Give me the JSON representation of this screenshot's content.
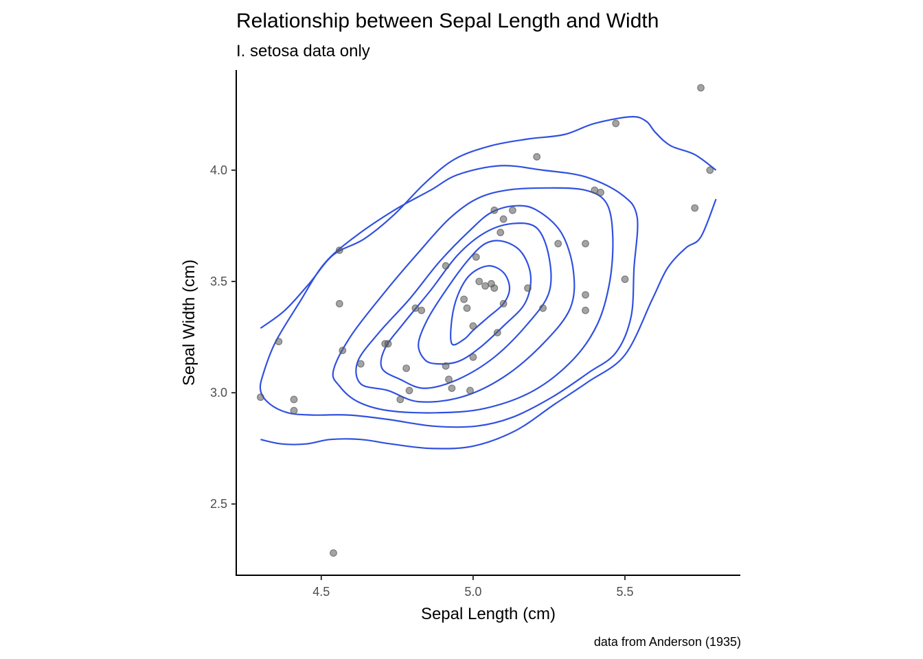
{
  "chart_data": {
    "type": "scatter",
    "title": "Relationship between Sepal Length and Width",
    "subtitle": "I. setosa data only",
    "xlabel": "Sepal Length (cm)",
    "ylabel": "Sepal Width (cm)",
    "caption": "data from Anderson (1935)",
    "xlim": [
      4.22,
      5.88
    ],
    "ylim": [
      2.18,
      4.45
    ],
    "x_ticks": [
      4.5,
      5.0,
      5.5
    ],
    "x_tick_labels": [
      "4.5",
      "5.0",
      "5.5"
    ],
    "y_ticks": [
      2.5,
      3.0,
      3.5,
      4.0
    ],
    "y_tick_labels": [
      "2.5",
      "3.0",
      "3.5",
      "4.0"
    ],
    "grid": false,
    "colors": {
      "points": "#595959",
      "contours": "#3050e0"
    },
    "points": [
      [
        4.3,
        2.98
      ],
      [
        4.36,
        3.23
      ],
      [
        4.41,
        2.97
      ],
      [
        4.41,
        2.92
      ],
      [
        4.54,
        2.28
      ],
      [
        4.56,
        3.64
      ],
      [
        4.56,
        3.4
      ],
      [
        4.57,
        3.19
      ],
      [
        4.63,
        3.13
      ],
      [
        4.71,
        3.22
      ],
      [
        4.72,
        3.22
      ],
      [
        4.76,
        2.97
      ],
      [
        4.78,
        3.11
      ],
      [
        4.79,
        3.01
      ],
      [
        4.81,
        3.38
      ],
      [
        4.83,
        3.37
      ],
      [
        4.91,
        3.57
      ],
      [
        4.91,
        3.12
      ],
      [
        4.92,
        3.06
      ],
      [
        4.93,
        3.02
      ],
      [
        4.97,
        3.42
      ],
      [
        4.98,
        3.38
      ],
      [
        4.99,
        3.01
      ],
      [
        5.0,
        3.16
      ],
      [
        5.0,
        3.3
      ],
      [
        5.01,
        3.61
      ],
      [
        5.02,
        3.5
      ],
      [
        5.04,
        3.48
      ],
      [
        5.06,
        3.49
      ],
      [
        5.07,
        3.47
      ],
      [
        5.07,
        3.82
      ],
      [
        5.08,
        3.27
      ],
      [
        5.09,
        3.72
      ],
      [
        5.1,
        3.78
      ],
      [
        5.1,
        3.4
      ],
      [
        5.13,
        3.82
      ],
      [
        5.18,
        3.47
      ],
      [
        5.21,
        4.06
      ],
      [
        5.23,
        3.38
      ],
      [
        5.28,
        3.67
      ],
      [
        5.37,
        3.67
      ],
      [
        5.37,
        3.44
      ],
      [
        5.37,
        3.37
      ],
      [
        5.4,
        3.91
      ],
      [
        5.42,
        3.9
      ],
      [
        5.47,
        4.21
      ],
      [
        5.5,
        3.51
      ],
      [
        5.73,
        3.83
      ],
      [
        5.75,
        4.37
      ],
      [
        5.78,
        4.0
      ]
    ],
    "contours": [
      [
        [
          4.97,
          3.24
        ],
        [
          4.93,
          3.22
        ],
        [
          4.93,
          3.33
        ],
        [
          4.95,
          3.44
        ],
        [
          4.99,
          3.53
        ],
        [
          5.05,
          3.57
        ],
        [
          5.1,
          3.54
        ],
        [
          5.12,
          3.47
        ],
        [
          5.1,
          3.4
        ],
        [
          5.05,
          3.34
        ],
        [
          5.0,
          3.28
        ]
      ],
      [
        [
          4.84,
          3.15
        ],
        [
          4.82,
          3.22
        ],
        [
          4.85,
          3.33
        ],
        [
          4.91,
          3.46
        ],
        [
          4.98,
          3.59
        ],
        [
          5.04,
          3.67
        ],
        [
          5.1,
          3.68
        ],
        [
          5.16,
          3.63
        ],
        [
          5.19,
          3.52
        ],
        [
          5.17,
          3.4
        ],
        [
          5.1,
          3.3
        ],
        [
          5.02,
          3.2
        ],
        [
          4.95,
          3.14
        ],
        [
          4.88,
          3.13
        ]
      ],
      [
        [
          4.76,
          3.06
        ],
        [
          4.7,
          3.11
        ],
        [
          4.71,
          3.2
        ],
        [
          4.77,
          3.31
        ],
        [
          4.86,
          3.46
        ],
        [
          4.95,
          3.62
        ],
        [
          5.04,
          3.72
        ],
        [
          5.13,
          3.76
        ],
        [
          5.21,
          3.74
        ],
        [
          5.25,
          3.61
        ],
        [
          5.25,
          3.45
        ],
        [
          5.18,
          3.31
        ],
        [
          5.07,
          3.16
        ],
        [
          4.95,
          3.06
        ],
        [
          4.84,
          3.02
        ]
      ],
      [
        [
          4.72,
          3.01
        ],
        [
          4.63,
          3.04
        ],
        [
          4.62,
          3.14
        ],
        [
          4.69,
          3.27
        ],
        [
          4.79,
          3.42
        ],
        [
          4.89,
          3.59
        ],
        [
          4.99,
          3.73
        ],
        [
          5.06,
          3.81
        ],
        [
          5.14,
          3.84
        ],
        [
          5.21,
          3.82
        ],
        [
          5.29,
          3.72
        ],
        [
          5.33,
          3.55
        ],
        [
          5.32,
          3.38
        ],
        [
          5.23,
          3.22
        ],
        [
          5.1,
          3.07
        ],
        [
          4.96,
          2.98
        ],
        [
          4.82,
          2.96
        ]
      ],
      [
        [
          4.56,
          3.03
        ],
        [
          4.54,
          3.1
        ],
        [
          4.6,
          3.26
        ],
        [
          4.72,
          3.47
        ],
        [
          4.82,
          3.63
        ],
        [
          4.92,
          3.78
        ],
        [
          5.01,
          3.87
        ],
        [
          5.11,
          3.91
        ],
        [
          5.24,
          3.92
        ],
        [
          5.37,
          3.91
        ],
        [
          5.44,
          3.85
        ],
        [
          5.46,
          3.7
        ],
        [
          5.45,
          3.5
        ],
        [
          5.41,
          3.31
        ],
        [
          5.33,
          3.15
        ],
        [
          5.2,
          3.01
        ],
        [
          5.04,
          2.93
        ],
        [
          4.88,
          2.91
        ],
        [
          4.72,
          2.92
        ],
        [
          4.62,
          2.96
        ]
      ],
      [
        [
          4.31,
          3.09
        ],
        [
          4.3,
          3.01
        ],
        [
          4.33,
          2.95
        ],
        [
          4.39,
          2.91
        ],
        [
          4.47,
          2.9
        ],
        [
          4.59,
          2.9
        ],
        [
          4.72,
          2.88
        ],
        [
          4.87,
          2.85
        ],
        [
          5.01,
          2.85
        ],
        [
          5.13,
          2.89
        ],
        [
          5.26,
          2.98
        ],
        [
          5.38,
          3.09
        ],
        [
          5.47,
          3.18
        ],
        [
          5.52,
          3.34
        ],
        [
          5.53,
          3.56
        ],
        [
          5.54,
          3.79
        ],
        [
          5.49,
          3.89
        ],
        [
          5.37,
          3.97
        ],
        [
          5.23,
          4.0
        ],
        [
          5.09,
          4.02
        ],
        [
          4.95,
          3.98
        ],
        [
          4.86,
          3.91
        ],
        [
          4.74,
          3.82
        ],
        [
          4.61,
          3.7
        ],
        [
          4.51,
          3.58
        ],
        [
          4.43,
          3.41
        ],
        [
          4.35,
          3.23
        ]
      ],
      [
        [
          4.3,
          3.29
        ],
        [
          4.38,
          3.37
        ],
        [
          4.46,
          3.49
        ],
        [
          4.54,
          3.62
        ],
        [
          4.64,
          3.69
        ],
        [
          4.74,
          3.8
        ],
        [
          4.84,
          3.94
        ],
        [
          4.94,
          4.05
        ],
        [
          5.06,
          4.11
        ],
        [
          5.18,
          4.14
        ],
        [
          5.3,
          4.16
        ],
        [
          5.4,
          4.21
        ],
        [
          5.52,
          4.24
        ],
        [
          5.57,
          4.22
        ],
        [
          5.6,
          4.17
        ],
        [
          5.65,
          4.11
        ],
        [
          5.73,
          4.07
        ],
        [
          5.8,
          4.0
        ]
      ],
      [
        [
          4.3,
          2.79
        ],
        [
          4.37,
          2.77
        ],
        [
          4.45,
          2.77
        ],
        [
          4.53,
          2.79
        ],
        [
          4.63,
          2.79
        ],
        [
          4.73,
          2.77
        ],
        [
          4.86,
          2.75
        ],
        [
          5.0,
          2.76
        ],
        [
          5.14,
          2.83
        ],
        [
          5.27,
          2.95
        ],
        [
          5.38,
          3.05
        ],
        [
          5.5,
          3.17
        ],
        [
          5.59,
          3.42
        ],
        [
          5.64,
          3.56
        ],
        [
          5.7,
          3.65
        ],
        [
          5.75,
          3.7
        ],
        [
          5.8,
          3.87
        ]
      ]
    ]
  }
}
